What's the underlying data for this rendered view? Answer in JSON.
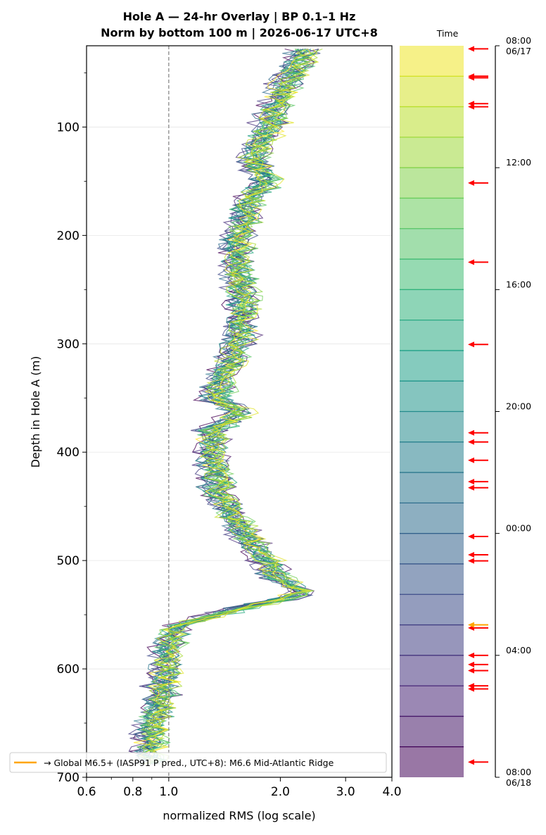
{
  "title_line1": "Hole A — 24-hr Overlay  |  BP 0.1–1 Hz",
  "title_line2": "Norm by bottom 100 m  |  2026-06-17 UTC+8",
  "colorbar_title": "Time",
  "legend_label": "→ Global M6.5+ (IASP91 P pred., UTC+8): M6.6 Mid-Atlantic Ridge",
  "legend_color": "#ffa500",
  "event_marker_color": "#ff0000",
  "reference_line_color": "#808080",
  "colormap": "viridis",
  "chart_data": {
    "type": "line",
    "xlabel": "normalized RMS  (log scale)",
    "ylabel": "Depth in Hole A (m)",
    "xscale": "log",
    "xlim": [
      0.6,
      4.0
    ],
    "ylim": [
      700,
      25
    ],
    "y_inverted": true,
    "xticks": [
      {
        "value": 0.6,
        "label": "0.6"
      },
      {
        "value": 0.8,
        "label": "0.8"
      },
      {
        "value": 1.0,
        "label": "1.0"
      },
      {
        "value": 2.0,
        "label": "2.0"
      },
      {
        "value": 3.0,
        "label": "3.0"
      },
      {
        "value": 4.0,
        "label": "4.0"
      }
    ],
    "yticks": [
      {
        "value": 100,
        "label": "100"
      },
      {
        "value": 200,
        "label": "200"
      },
      {
        "value": 300,
        "label": "300"
      },
      {
        "value": 400,
        "label": "400"
      },
      {
        "value": 500,
        "label": "500"
      },
      {
        "value": 600,
        "label": "600"
      },
      {
        "value": 700,
        "label": "700"
      }
    ],
    "grid": "horizontal",
    "reference_line_x": 1.0,
    "legend_position": "lower-left",
    "series_count": 24,
    "series_opacity": 0.75,
    "profile_mean": [
      {
        "depth": 30,
        "x": 2.3
      },
      {
        "depth": 50,
        "x": 2.15
      },
      {
        "depth": 70,
        "x": 2.0
      },
      {
        "depth": 100,
        "x": 1.85
      },
      {
        "depth": 130,
        "x": 1.68
      },
      {
        "depth": 150,
        "x": 1.82
      },
      {
        "depth": 170,
        "x": 1.62
      },
      {
        "depth": 200,
        "x": 1.55
      },
      {
        "depth": 230,
        "x": 1.52
      },
      {
        "depth": 260,
        "x": 1.58
      },
      {
        "depth": 290,
        "x": 1.55
      },
      {
        "depth": 320,
        "x": 1.45
      },
      {
        "depth": 350,
        "x": 1.33
      },
      {
        "depth": 365,
        "x": 1.55
      },
      {
        "depth": 380,
        "x": 1.3
      },
      {
        "depth": 410,
        "x": 1.32
      },
      {
        "depth": 440,
        "x": 1.36
      },
      {
        "depth": 470,
        "x": 1.55
      },
      {
        "depth": 500,
        "x": 1.8
      },
      {
        "depth": 515,
        "x": 1.95
      },
      {
        "depth": 530,
        "x": 2.3
      },
      {
        "depth": 545,
        "x": 1.5
      },
      {
        "depth": 560,
        "x": 1.05
      },
      {
        "depth": 575,
        "x": 1.0
      },
      {
        "depth": 600,
        "x": 0.98
      },
      {
        "depth": 630,
        "x": 0.95
      },
      {
        "depth": 650,
        "x": 0.9
      },
      {
        "depth": 680,
        "x": 0.88
      }
    ],
    "colorbar": {
      "type": "time",
      "start": "08:00 06/17",
      "end": "08:00 06/18",
      "bins": 24,
      "ticks": [
        {
          "hour_offset": 0,
          "label": "08:00",
          "sublabel": "06/17"
        },
        {
          "hour_offset": 4,
          "label": "12:00",
          "sublabel": ""
        },
        {
          "hour_offset": 8,
          "label": "16:00",
          "sublabel": ""
        },
        {
          "hour_offset": 12,
          "label": "20:00",
          "sublabel": ""
        },
        {
          "hour_offset": 16,
          "label": "00:00",
          "sublabel": ""
        },
        {
          "hour_offset": 20,
          "label": "04:00",
          "sublabel": ""
        },
        {
          "hour_offset": 24,
          "label": "08:00",
          "sublabel": "06/18"
        }
      ]
    },
    "event_markers_hours": [
      0.1,
      1.0,
      1.05,
      1.9,
      2.0,
      4.5,
      7.1,
      9.8,
      12.7,
      13.0,
      13.6,
      14.3,
      14.5,
      16.1,
      16.7,
      16.9,
      19.1,
      20.0,
      20.3,
      20.5,
      21.0,
      21.1,
      23.5
    ],
    "highlight_marker_hour": 19.0
  }
}
